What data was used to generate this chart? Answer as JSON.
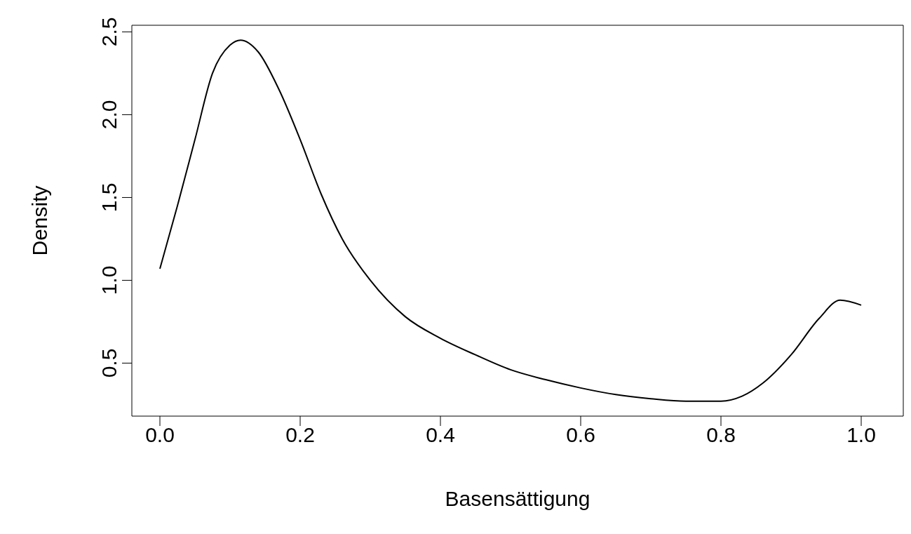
{
  "chart_data": {
    "type": "line",
    "xlabel": "Basensättigung",
    "ylabel": "Density",
    "color": "#000000",
    "x": [
      0,
      0.025,
      0.05,
      0.075,
      0.1,
      0.115,
      0.14,
      0.17,
      0.2,
      0.23,
      0.26,
      0.3,
      0.35,
      0.4,
      0.45,
      0.5,
      0.55,
      0.6,
      0.65,
      0.7,
      0.75,
      0.8,
      0.83,
      0.86,
      0.9,
      0.94,
      0.97,
      1.0
    ],
    "values": [
      1.07,
      1.45,
      1.85,
      2.25,
      2.42,
      2.45,
      2.38,
      2.15,
      1.85,
      1.52,
      1.25,
      1.0,
      0.78,
      0.65,
      0.55,
      0.46,
      0.4,
      0.35,
      0.31,
      0.285,
      0.27,
      0.27,
      0.3,
      0.38,
      0.55,
      0.77,
      0.88,
      0.85
    ],
    "xlim": [
      -0.04,
      1.06
    ],
    "ylim": [
      0.18,
      2.54
    ],
    "xticks": [
      {
        "value": 0,
        "label": "0.0"
      },
      {
        "value": 0.2,
        "label": "0.2"
      },
      {
        "value": 0.4,
        "label": "0.4"
      },
      {
        "value": 0.6,
        "label": "0.6"
      },
      {
        "value": 0.8,
        "label": "0.8"
      },
      {
        "value": 1,
        "label": "1.0"
      }
    ],
    "yticks": [
      {
        "value": 0.5,
        "label": "0.5"
      },
      {
        "value": 1,
        "label": "1.0"
      },
      {
        "value": 1.5,
        "label": "1.5"
      },
      {
        "value": 2,
        "label": "2.0"
      },
      {
        "value": 2.5,
        "label": "2.5"
      }
    ]
  }
}
